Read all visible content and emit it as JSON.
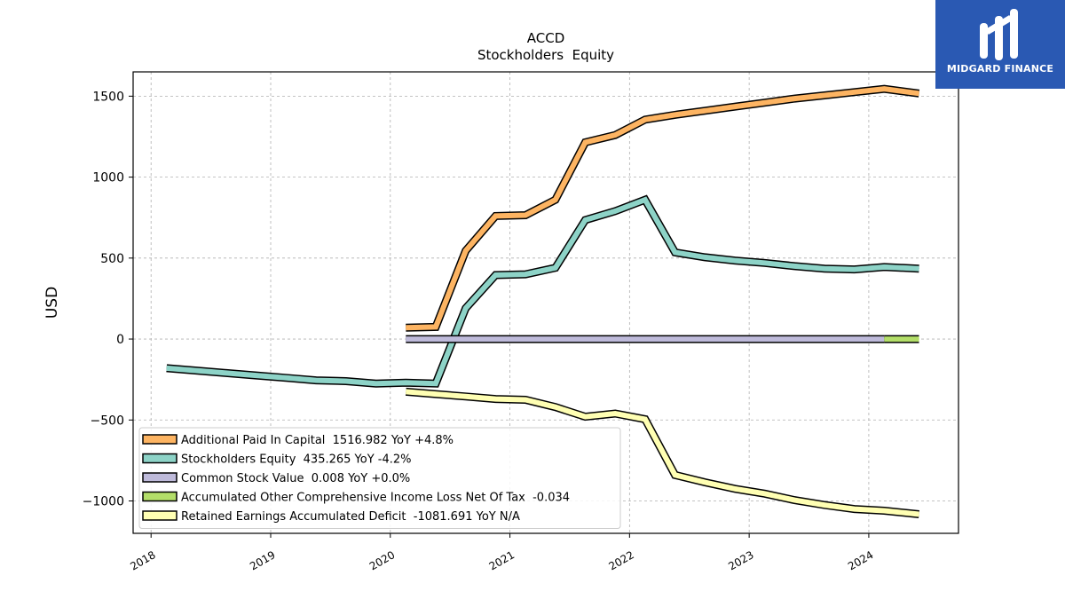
{
  "chart_data": {
    "type": "line",
    "title": "ACCD",
    "subtitle": "Stockholders  Equity",
    "ylabel": "USD",
    "xlabel": "",
    "ylim": [
      -1200,
      1650
    ],
    "xlim": [
      2017.85,
      2024.75
    ],
    "yticks": [
      -1000,
      -500,
      0,
      500,
      1000,
      1500
    ],
    "ytick_labels": [
      "−1000",
      "−500",
      "0",
      "500",
      "1000",
      "1500"
    ],
    "xticks": [
      2018,
      2019,
      2020,
      2021,
      2022,
      2023,
      2024
    ],
    "xtick_labels": [
      "2018",
      "2019",
      "2020",
      "2021",
      "2022",
      "2023",
      "2024"
    ],
    "grid": true,
    "legend_position": "lower-left",
    "series": [
      {
        "name": "Additional Paid In Capital  1516.982 YoY +4.8%",
        "color": "#fdb462",
        "x": [
          2020.13,
          2020.38,
          2020.63,
          2020.88,
          2021.13,
          2021.38,
          2021.63,
          2021.88,
          2022.13,
          2022.38,
          2022.63,
          2022.88,
          2023.13,
          2023.38,
          2023.63,
          2023.88,
          2024.13,
          2024.42
        ],
        "y": [
          70,
          75,
          545,
          760,
          765,
          860,
          1215,
          1260,
          1355,
          1385,
          1410,
          1435,
          1460,
          1485,
          1505,
          1525,
          1545,
          1517
        ]
      },
      {
        "name": "Stockholders Equity  435.265 YoY -4.2%",
        "color": "#8dd3c7",
        "x": [
          2018.13,
          2018.38,
          2018.63,
          2018.88,
          2019.13,
          2019.38,
          2019.63,
          2019.88,
          2020.13,
          2020.38,
          2020.63,
          2020.88,
          2021.13,
          2021.38,
          2021.63,
          2021.88,
          2022.13,
          2022.38,
          2022.63,
          2022.88,
          2023.13,
          2023.38,
          2023.63,
          2023.88,
          2024.13,
          2024.42
        ],
        "y": [
          -180,
          -195,
          -210,
          -225,
          -240,
          -255,
          -260,
          -275,
          -270,
          -275,
          190,
          395,
          400,
          440,
          735,
          790,
          860,
          535,
          505,
          485,
          470,
          450,
          435,
          430,
          445,
          435
        ]
      },
      {
        "name": "Common Stock Value  0.008 YoY +0.0%",
        "color": "#bebada",
        "x": [
          2020.13,
          2024.13
        ],
        "y": [
          0.008,
          0.008
        ]
      },
      {
        "name": "Accumulated Other Comprehensive Income Loss Net Of Tax  -0.034",
        "color": "#b3de69",
        "x": [
          2024.13,
          2024.42
        ],
        "y": [
          -0.034,
          -0.034
        ]
      },
      {
        "name": "Retained Earnings Accumulated Deficit  -1081.691 YoY N/A",
        "color": "#ffffb3",
        "x": [
          2020.13,
          2020.38,
          2020.63,
          2020.88,
          2021.13,
          2021.38,
          2021.63,
          2021.88,
          2022.13,
          2022.38,
          2022.63,
          2022.88,
          2023.13,
          2023.38,
          2023.63,
          2023.88,
          2024.13,
          2024.42
        ],
        "y": [
          -325,
          -340,
          -355,
          -370,
          -375,
          -420,
          -480,
          -460,
          -495,
          -840,
          -885,
          -925,
          -955,
          -995,
          -1025,
          -1050,
          -1060,
          -1082
        ]
      }
    ]
  },
  "logo": {
    "text": "MIDGARD FINANCE"
  }
}
